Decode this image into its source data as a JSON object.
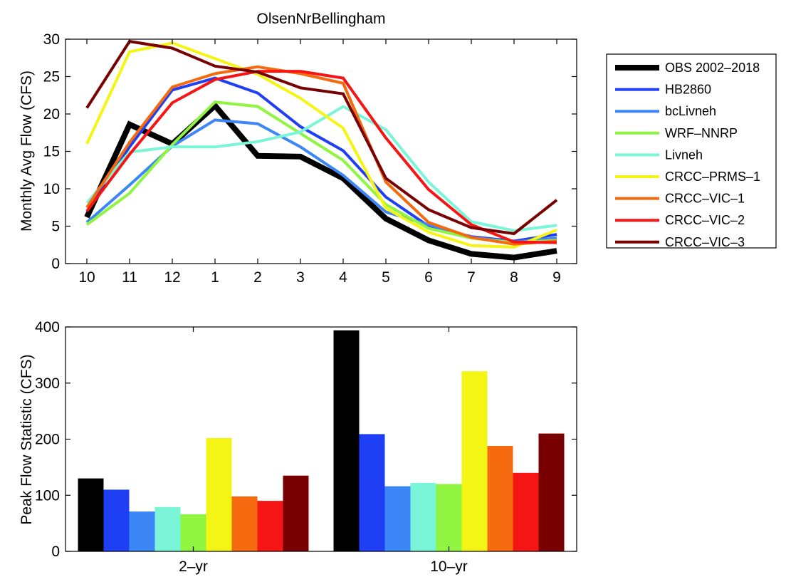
{
  "chart_data": [
    {
      "type": "line",
      "title": "OlsenNrBellingham",
      "xlabel": "",
      "ylabel": "Monthly Avg Flow (CFS)",
      "categories": [
        "10",
        "11",
        "12",
        "1",
        "2",
        "3",
        "4",
        "5",
        "6",
        "7",
        "8",
        "9"
      ],
      "ylim": [
        0,
        30
      ],
      "yticks": [
        0,
        5,
        10,
        15,
        20,
        25,
        30
      ],
      "grid": false,
      "legend_position": "outside-right",
      "series": [
        {
          "name": "OBS 2002–2018",
          "color": "#000000",
          "values": [
            6.2,
            18.6,
            16.0,
            21.1,
            14.4,
            14.3,
            11.4,
            6.0,
            3.1,
            1.3,
            0.8,
            1.7
          ]
        },
        {
          "name": "HB2860",
          "color": "#1f3ff5",
          "values": [
            7.5,
            15.6,
            23.2,
            24.8,
            22.8,
            18.3,
            15.1,
            8.9,
            5.0,
            3.6,
            3.0,
            3.9
          ]
        },
        {
          "name": "bcLivneh",
          "color": "#3d86f7",
          "values": [
            5.5,
            10.5,
            15.7,
            19.2,
            18.7,
            15.6,
            11.8,
            6.9,
            5.2,
            3.5,
            2.9,
            3.4
          ]
        },
        {
          "name": "WRF–NNRP",
          "color": "#8ff540",
          "values": [
            5.2,
            9.4,
            15.9,
            21.6,
            21.0,
            17.4,
            13.8,
            7.9,
            4.7,
            3.4,
            2.8,
            3.1
          ]
        },
        {
          "name": "Livneh",
          "color": "#7af5d8",
          "values": [
            8.1,
            14.9,
            15.6,
            15.6,
            16.3,
            17.6,
            21.0,
            17.9,
            10.9,
            5.6,
            4.4,
            5.1
          ]
        },
        {
          "name": "CRCC–PRMS–1",
          "color": "#f5f515",
          "values": [
            16.0,
            28.3,
            29.5,
            27.4,
            25.3,
            22.1,
            18.1,
            7.4,
            4.2,
            2.4,
            2.2,
            4.5
          ]
        },
        {
          "name": "CRCC–VIC–1",
          "color": "#f56a0f",
          "values": [
            7.5,
            16.2,
            23.6,
            25.4,
            26.3,
            25.4,
            24.1,
            10.9,
            5.5,
            3.5,
            2.6,
            3.0
          ]
        },
        {
          "name": "CRCC–VIC–2",
          "color": "#f51515",
          "values": [
            7.0,
            14.6,
            21.5,
            24.6,
            25.7,
            25.7,
            24.8,
            16.8,
            9.9,
            5.2,
            2.9,
            2.8
          ]
        },
        {
          "name": "CRCC–VIC–3",
          "color": "#780000",
          "values": [
            20.8,
            29.7,
            28.8,
            26.4,
            25.6,
            23.5,
            22.7,
            11.4,
            7.2,
            4.8,
            4.0,
            8.5
          ]
        }
      ]
    },
    {
      "type": "bar",
      "title": "",
      "xlabel": "",
      "ylabel": "Peak Flow Statistic (CFS)",
      "categories": [
        "2–yr",
        "10–yr"
      ],
      "ylim": [
        0,
        400
      ],
      "yticks": [
        0,
        100,
        200,
        300,
        400
      ],
      "grid": false,
      "series": [
        {
          "color": "#000000",
          "values": [
            130,
            394
          ]
        },
        {
          "color": "#1f3ff5",
          "values": [
            110,
            209
          ]
        },
        {
          "color": "#3d86f7",
          "values": [
            71,
            116
          ]
        },
        {
          "color": "#7af5d8",
          "values": [
            79,
            122
          ]
        },
        {
          "color": "#8ff540",
          "values": [
            66,
            120
          ]
        },
        {
          "color": "#f5f515",
          "values": [
            202,
            321
          ]
        },
        {
          "color": "#f56a0f",
          "values": [
            98,
            188
          ]
        },
        {
          "color": "#f51515",
          "values": [
            90,
            140
          ]
        },
        {
          "color": "#780000",
          "values": [
            135,
            210
          ]
        }
      ]
    }
  ]
}
